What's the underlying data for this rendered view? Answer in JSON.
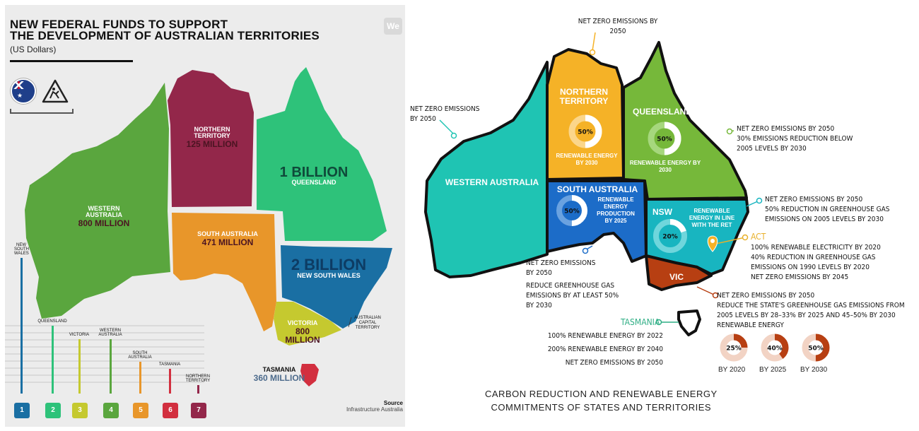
{
  "left": {
    "title_line1": "NEW FEDERAL FUNDS TO SUPPORT",
    "title_line2": "THE DEVELOPMENT OF AUSTRALIAN TERRITORIES",
    "subtitle": "(US Dollars)",
    "logo": "We",
    "regions": [
      {
        "name": "WESTERN AUSTRALIA",
        "amount": "800 MILLION",
        "color": "#5aa63e"
      },
      {
        "name": "NORTHERN TERRITORY",
        "amount": "125 MILLION",
        "color": "#93274a"
      },
      {
        "name": "QUEENSLAND",
        "amount": "1 BILLION",
        "color": "#2ec27a"
      },
      {
        "name": "SOUTH AUSTRALIA",
        "amount": "471 MILLION",
        "color": "#e8962a"
      },
      {
        "name": "NEW SOUTH WALES",
        "amount": "2 BILLION",
        "color": "#1a6fa3"
      },
      {
        "name": "VICTORIA",
        "amount": "800 MILLION",
        "color": "#c5c92f"
      },
      {
        "name": "TASMANIA",
        "amount": "360 MILLION",
        "color": "#d22f3f"
      },
      {
        "name": "AUSTRALIAN CAPITAL TERRITORY",
        "amount": "",
        "color": "#1a6fa3"
      }
    ],
    "chart_data": {
      "type": "bar",
      "categories": [
        "NEW SOUTH WALES",
        "QUEENSLAND",
        "VICTORIA",
        "WESTERN AUSTRALIA",
        "SOUTH AUSTRALIA",
        "TASMANIA",
        "NORTHERN TERRITORY"
      ],
      "numbers": [
        "1",
        "2",
        "3",
        "4",
        "5",
        "6",
        "7"
      ],
      "values": [
        2000,
        1000,
        800,
        800,
        471,
        360,
        125
      ],
      "colors": [
        "#1a6fa3",
        "#2ec27a",
        "#c5c92f",
        "#5aa63e",
        "#e8962a",
        "#d22f3f",
        "#93274a"
      ]
    },
    "source_label": "Source",
    "source_name": "Infrastructure Australia"
  },
  "right": {
    "regions": [
      {
        "name": "WESTERN AUSTRALIA",
        "color": "#1fc4b3"
      },
      {
        "name": "NORTHERN TERRITORY",
        "color": "#f5b227",
        "ring": "50%",
        "note": "RENEWABLE ENERGY BY 2030"
      },
      {
        "name": "QUEENSLAND",
        "color": "#76b83a",
        "ring": "50%",
        "note": "RENEWABLE ENERGY BY 2030"
      },
      {
        "name": "SOUTH AUSTRALIA",
        "color": "#1c6cc8",
        "ring": "50%",
        "note": "RENEWABLE ENERGY PRODUCTION BY 2025"
      },
      {
        "name": "NSW",
        "color": "#18b5c0",
        "ring": "20%",
        "note": "RENEWABLE ENERGY IN LINE WITH THE RET"
      },
      {
        "name": "VIC",
        "color": "#b73f12"
      },
      {
        "name": "TASMANIA",
        "color": "#ffffff"
      }
    ],
    "callouts": {
      "nt": "NET ZERO EMISSIONS BY 2050",
      "wa": "NET ZERO EMISSIONS BY 2050",
      "qld": [
        "NET ZERO EMISSIONS BY 2050",
        "30% EMISSIONS REDUCTION BELOW",
        "2005 LEVELS BY 2030"
      ],
      "nsw": [
        "NET ZERO EMISSIONS BY 2050",
        "50% REDUCTION IN GREENHOUSE GAS",
        "EMISSIONS ON 2005 LEVELS BY 2030"
      ],
      "act_label": "ACT",
      "act": [
        "100% RENEWABLE ELECTRICITY BY 2020",
        "40% REDUCTION IN GREENHOUSE GAS",
        "EMISSIONS ON 1990 LEVELS BY 2020",
        "NET ZERO EMISSIONS BY 2045"
      ],
      "sa": [
        "NET ZERO EMISSIONS",
        "BY 2050",
        "REDUCE GREENHOUSE GAS",
        "EMISSIONS BY AT LEAST 50%",
        "BY 2030"
      ],
      "vic": [
        "NET ZERO EMISSIONS BY 2050",
        "REDUCE THE STATE'S GREENHOUSE GAS EMISSIONS FROM",
        "2005 LEVELS BY 28–33% BY 2025 AND 45–50% BY 2030",
        "RENEWABLE ENERGY"
      ],
      "tas_label": "TASMANIA",
      "tas": [
        "100% RENEWABLE ENERGY BY 2022",
        "200% RENEWABLE ENERGY BY 2040",
        "NET ZERO EMISSIONS BY 2050"
      ]
    },
    "vic_rings": [
      {
        "value": "25%",
        "label": "BY 2020",
        "fraction": 0.25
      },
      {
        "value": "40%",
        "label": "BY 2025",
        "fraction": 0.4
      },
      {
        "value": "50%",
        "label": "BY 2030",
        "fraction": 0.5
      }
    ],
    "bottom_title_line1": "CARBON REDUCTION AND RENEWABLE ENERGY",
    "bottom_title_line2": "COMMITMENTS  OF STATES AND TERRITORIES"
  }
}
